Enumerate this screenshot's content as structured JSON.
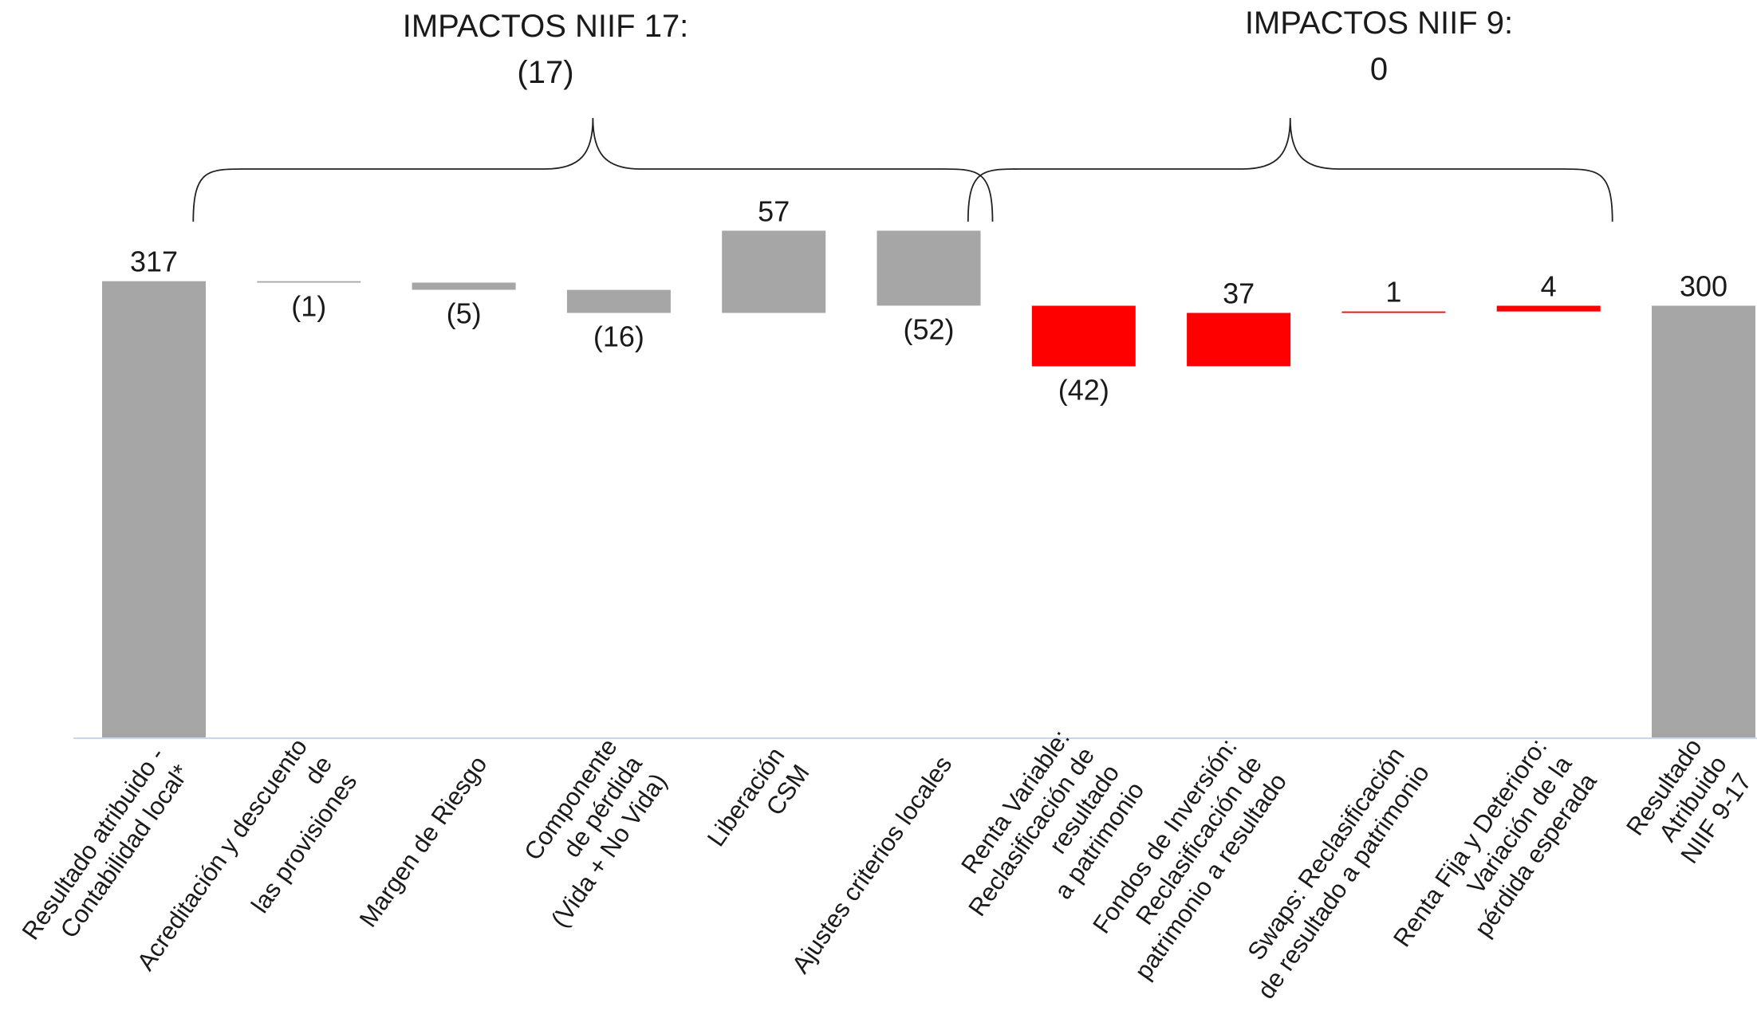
{
  "chart_data": {
    "type": "waterfall",
    "title": "",
    "xlabel": "",
    "ylabel": "",
    "ylim": [
      0,
      330
    ],
    "grid": false,
    "legend": "none",
    "groups": [
      {
        "title": "IMPACTOS NIIF 17:",
        "total_label": "(17)",
        "total": -17,
        "first_index": 1,
        "last_index": 5
      },
      {
        "title": "IMPACTOS NIIF 9:",
        "total_label": "0",
        "total": 0,
        "first_index": 6,
        "last_index": 9
      }
    ],
    "bars": [
      {
        "category": [
          "Resultado atribuido -",
          "Contabilidad local*"
        ],
        "value": 317,
        "label": "317",
        "kind": "total",
        "color": "#a6a6a6"
      },
      {
        "category": [
          "Acreditación y descuento",
          "de",
          "las provisiones"
        ],
        "value": -1,
        "label": "(1)",
        "kind": "delta",
        "color": "#a6a6a6"
      },
      {
        "category": [
          "Margen de Riesgo"
        ],
        "value": -5,
        "label": "(5)",
        "kind": "delta",
        "color": "#a6a6a6"
      },
      {
        "category": [
          "Componente",
          "de pérdida",
          "(Vida + No Vida)"
        ],
        "value": -16,
        "label": "(16)",
        "kind": "delta",
        "color": "#a6a6a6"
      },
      {
        "category": [
          "Liberación",
          "CSM"
        ],
        "value": 57,
        "label": "57",
        "kind": "delta",
        "color": "#a6a6a6"
      },
      {
        "category": [
          "Ajustes criterios locales"
        ],
        "value": -52,
        "label": "(52)",
        "kind": "delta",
        "color": "#a6a6a6"
      },
      {
        "category": [
          "Renta Variable:",
          "Reclasificación de",
          "resultado",
          "a patrimonio"
        ],
        "value": -42,
        "label": "(42)",
        "kind": "delta",
        "color": "#ff0000"
      },
      {
        "category": [
          "Fondos de Inversión:",
          "Reclasificación de",
          "patrimonio a resultado"
        ],
        "value": 37,
        "label": "37",
        "kind": "delta",
        "color": "#ff0000"
      },
      {
        "category": [
          "Swaps: Reclasificación",
          "de resultado a patrimonio"
        ],
        "value": 1,
        "label": "1",
        "kind": "delta",
        "color": "#ff0000"
      },
      {
        "category": [
          "Renta Fija y Deterioro:",
          "Variación de la",
          "pérdida esperada"
        ],
        "value": 4,
        "label": "4",
        "kind": "delta",
        "color": "#ff0000"
      },
      {
        "category": [
          "Resultado",
          "Atribuido",
          "NIIF 9-17"
        ],
        "value": 300,
        "label": "300",
        "kind": "total",
        "color": "#a6a6a6"
      }
    ]
  }
}
